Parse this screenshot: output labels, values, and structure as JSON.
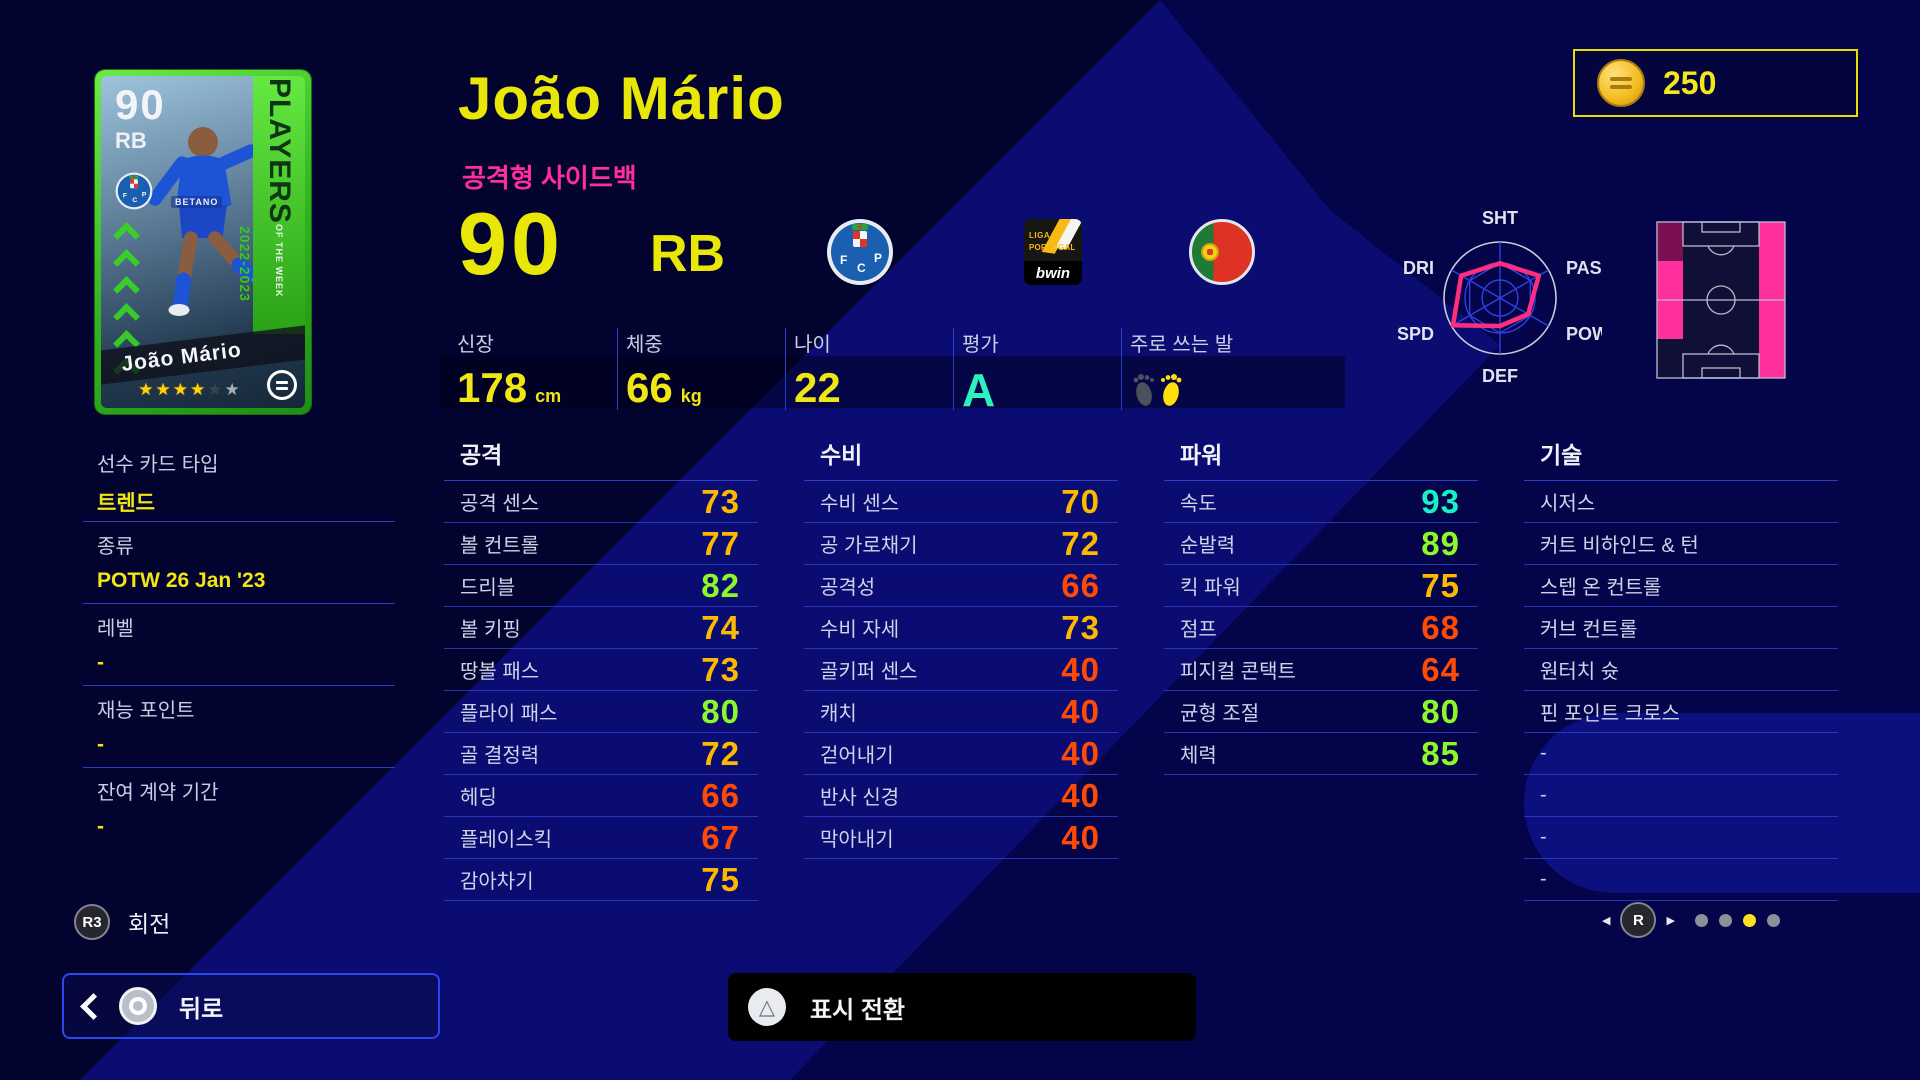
{
  "colors": {
    "accent_yellow": "#e8e708",
    "pink": "#ff2da0",
    "tier_teal": "#16f2c6",
    "tier_green": "#8df827",
    "tier_gold": "#fdb900",
    "tier_red": "#ff4a05",
    "card_green": "#3fd52e",
    "radar_line": "#ff2d7d",
    "zone_main": "#ff2f9e",
    "zone_weak": "#7c0e52"
  },
  "header": {
    "coins": "250"
  },
  "player": {
    "name": "João Mário",
    "role": "공격형 사이드백",
    "rating": "90",
    "position": "RB",
    "card": {
      "rating": "90",
      "position": "RB",
      "name": "João Mário",
      "banner_top": "PLAYERS",
      "banner_mid": "OF THE WEEK",
      "season": "2022-2023",
      "sponsor": "BETANO",
      "stars": [
        "filled",
        "filled",
        "filled",
        "filled",
        "dim",
        "empty"
      ]
    },
    "info": [
      {
        "label": "신장",
        "value": "178",
        "unit": "cm"
      },
      {
        "label": "체중",
        "value": "66",
        "unit": "kg"
      },
      {
        "label": "나이",
        "value": "22",
        "unit": ""
      },
      {
        "label": "평가",
        "value": "A",
        "unit": "",
        "grade": true
      },
      {
        "label": "주로 쓰는 발",
        "value": "",
        "unit": "",
        "icon": "feet"
      }
    ]
  },
  "badges": {
    "club_initials": "FCP",
    "league_line1": "LIGA",
    "league_line2": "PORTUGAL",
    "league_brand": "bwin",
    "nation": "Portugal"
  },
  "radar": {
    "axes": [
      "SHT",
      "PAS",
      "POW",
      "DEF",
      "SPD",
      "DRI"
    ],
    "fractions": [
      0.62,
      0.8,
      0.58,
      0.5,
      0.97,
      0.8
    ]
  },
  "field": {
    "zones": [
      {
        "col": 2,
        "row": 0,
        "tone": "main"
      },
      {
        "col": 2,
        "row": 1,
        "tone": "main"
      },
      {
        "col": 2,
        "row": 2,
        "tone": "main"
      },
      {
        "col": 2,
        "row": 3,
        "tone": "main"
      },
      {
        "col": 0,
        "row": 0,
        "tone": "weak"
      },
      {
        "col": 0,
        "row": 1,
        "tone": "main"
      },
      {
        "col": 0,
        "row": 2,
        "tone": "main"
      }
    ]
  },
  "sidebar": {
    "items": [
      {
        "label": "선수 카드 타입",
        "value": "트렌드"
      },
      {
        "label": "종류",
        "value": "POTW 26 Jan '23"
      },
      {
        "label": "레벨",
        "value": "-"
      },
      {
        "label": "재능 포인트",
        "value": "-"
      },
      {
        "label": "잔여 계약 기간",
        "value": "-"
      }
    ]
  },
  "stats": {
    "attack": {
      "title": "공격",
      "rows": [
        {
          "label": "공격 센스",
          "value": "73",
          "tier": "gold"
        },
        {
          "label": "볼 컨트롤",
          "value": "77",
          "tier": "gold"
        },
        {
          "label": "드리블",
          "value": "82",
          "tier": "green"
        },
        {
          "label": "볼 키핑",
          "value": "74",
          "tier": "gold"
        },
        {
          "label": "땅볼 패스",
          "value": "73",
          "tier": "gold"
        },
        {
          "label": "플라이 패스",
          "value": "80",
          "tier": "green"
        },
        {
          "label": "골 결정력",
          "value": "72",
          "tier": "gold"
        },
        {
          "label": "헤딩",
          "value": "66",
          "tier": "red"
        },
        {
          "label": "플레이스킥",
          "value": "67",
          "tier": "red"
        },
        {
          "label": "감아차기",
          "value": "75",
          "tier": "gold"
        }
      ]
    },
    "defense": {
      "title": "수비",
      "rows": [
        {
          "label": "수비 센스",
          "value": "70",
          "tier": "gold"
        },
        {
          "label": "공 가로채기",
          "value": "72",
          "tier": "gold"
        },
        {
          "label": "공격성",
          "value": "66",
          "tier": "red"
        },
        {
          "label": "수비 자세",
          "value": "73",
          "tier": "gold"
        },
        {
          "label": "골키퍼 센스",
          "value": "40",
          "tier": "red"
        },
        {
          "label": "캐치",
          "value": "40",
          "tier": "red"
        },
        {
          "label": "걷어내기",
          "value": "40",
          "tier": "red"
        },
        {
          "label": "반사 신경",
          "value": "40",
          "tier": "red"
        },
        {
          "label": "막아내기",
          "value": "40",
          "tier": "red"
        }
      ]
    },
    "power": {
      "title": "파워",
      "rows": [
        {
          "label": "속도",
          "value": "93",
          "tier": "teal"
        },
        {
          "label": "순발력",
          "value": "89",
          "tier": "green"
        },
        {
          "label": "킥 파워",
          "value": "75",
          "tier": "gold"
        },
        {
          "label": "점프",
          "value": "68",
          "tier": "red"
        },
        {
          "label": "피지컬 콘택트",
          "value": "64",
          "tier": "red"
        },
        {
          "label": "균형 조절",
          "value": "80",
          "tier": "green"
        },
        {
          "label": "체력",
          "value": "85",
          "tier": "green"
        }
      ]
    },
    "skill": {
      "title": "기술",
      "rows": [
        {
          "label": "시저스"
        },
        {
          "label": "커트 비하인드 & 턴"
        },
        {
          "label": "스텝 온 컨트롤"
        },
        {
          "label": "커브 컨트롤"
        },
        {
          "label": "원터치 슛"
        },
        {
          "label": "핀 포인트 크로스"
        },
        {
          "label": "-"
        },
        {
          "label": "-"
        },
        {
          "label": "-"
        },
        {
          "label": "-"
        }
      ]
    }
  },
  "controls": {
    "rotate": {
      "button": "R3",
      "label": "회전"
    },
    "back": {
      "label": "뒤로"
    },
    "toggle": {
      "label": "표시 전환"
    },
    "pager": {
      "button": "R",
      "dots": 4,
      "active": 2
    }
  }
}
